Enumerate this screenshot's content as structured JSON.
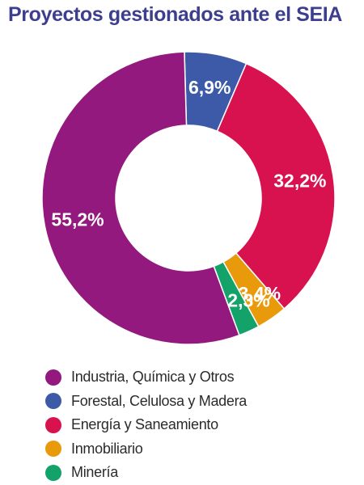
{
  "chart_data": {
    "type": "pie",
    "title": "Proyectos gestionados ante el SEIA",
    "categories": [
      "Industria, Química y Otros",
      "Forestal, Celulosa y Madera",
      "Energía y Saneamiento",
      "Inmobiliario",
      "Minería"
    ],
    "values": [
      55.2,
      6.9,
      32.2,
      3.4,
      2.3
    ],
    "value_labels": [
      "55,2%",
      "6,9%",
      "32,2%",
      "3,4%",
      "2,3%"
    ],
    "colors": [
      "#93197e",
      "#3d5aa8",
      "#d8114f",
      "#e89a0b",
      "#13a36a"
    ],
    "donut": true,
    "legend_position": "bottom",
    "slice_order": [
      1,
      2,
      3,
      4,
      0
    ]
  }
}
